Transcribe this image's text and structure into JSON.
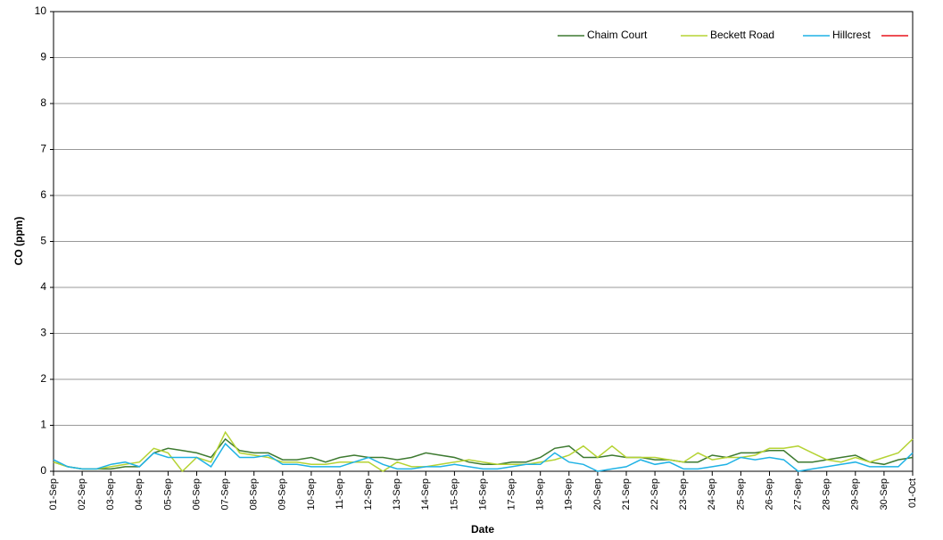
{
  "chart_data": {
    "type": "line",
    "y_label": "CO (ppm)",
    "x_label": "Date",
    "categories": [
      "01-Sep",
      null,
      "02-Sep",
      null,
      "03-Sep",
      null,
      "04-Sep",
      null,
      "05-Sep",
      null,
      "06-Sep",
      null,
      "07-Sep",
      null,
      "08-Sep",
      null,
      "09-Sep",
      null,
      "10-Sep",
      null,
      "11-Sep",
      null,
      "12-Sep",
      null,
      "13-Sep",
      null,
      "14-Sep",
      null,
      "15-Sep",
      null,
      "16-Sep",
      null,
      "17-Sep",
      null,
      "18-Sep",
      null,
      "19-Sep",
      null,
      "20-Sep",
      null,
      "21-Sep",
      null,
      "22-Sep",
      null,
      "23-Sep",
      null,
      "24-Sep",
      null,
      "25-Sep",
      null,
      "26-Sep",
      null,
      "27-Sep",
      null,
      "28-Sep",
      null,
      "29-Sep",
      null,
      "30-Sep",
      null,
      "01-Oct"
    ],
    "series": [
      {
        "name": "Chaim Court",
        "color": "#3d7a30",
        "values": [
          0.2,
          0.1,
          0.05,
          0.05,
          0.05,
          0.1,
          0.1,
          0.4,
          0.5,
          0.45,
          0.4,
          0.3,
          0.7,
          0.45,
          0.4,
          0.4,
          0.25,
          0.25,
          0.3,
          0.2,
          0.3,
          0.35,
          0.3,
          0.3,
          0.25,
          0.3,
          0.4,
          0.35,
          0.3,
          0.2,
          0.15,
          0.15,
          0.2,
          0.2,
          0.3,
          0.5,
          0.55,
          0.3,
          0.3,
          0.35,
          0.3,
          0.3,
          0.25,
          0.25,
          0.2,
          0.2,
          0.35,
          0.3,
          0.4,
          0.4,
          0.45,
          0.45,
          0.2,
          0.2,
          0.25,
          0.3,
          0.35,
          0.2,
          0.15,
          0.25,
          0.3
        ]
      },
      {
        "name": "Beckett Road",
        "color": "#b5d334",
        "values": [
          0.2,
          0.1,
          0.05,
          0.05,
          0.1,
          0.15,
          0.2,
          0.5,
          0.4,
          0.0,
          0.3,
          0.2,
          0.85,
          0.4,
          0.35,
          0.3,
          0.2,
          0.2,
          0.15,
          0.15,
          0.2,
          0.2,
          0.2,
          0.0,
          0.2,
          0.1,
          0.1,
          0.15,
          0.2,
          0.25,
          0.2,
          0.15,
          0.15,
          0.15,
          0.2,
          0.25,
          0.35,
          0.55,
          0.3,
          0.55,
          0.3,
          0.3,
          0.3,
          0.25,
          0.2,
          0.4,
          0.25,
          0.3,
          0.3,
          0.35,
          0.5,
          0.5,
          0.55,
          0.4,
          0.25,
          0.2,
          0.3,
          0.2,
          0.3,
          0.4,
          0.7
        ]
      },
      {
        "name": "Hillcrest",
        "color": "#1fb2e5",
        "values": [
          0.25,
          0.1,
          0.05,
          0.05,
          0.15,
          0.2,
          0.1,
          0.4,
          0.3,
          0.3,
          0.3,
          0.1,
          0.6,
          0.3,
          0.3,
          0.35,
          0.15,
          0.15,
          0.1,
          0.1,
          0.1,
          0.2,
          0.3,
          0.15,
          0.05,
          0.05,
          0.1,
          0.1,
          0.15,
          0.1,
          0.05,
          0.05,
          0.1,
          0.15,
          0.15,
          0.4,
          0.2,
          0.15,
          0.0,
          0.05,
          0.1,
          0.25,
          0.15,
          0.2,
          0.05,
          0.05,
          0.1,
          0.15,
          0.3,
          0.25,
          0.3,
          0.25,
          0.0,
          0.05,
          0.1,
          0.15,
          0.2,
          0.1,
          0.1,
          0.1,
          0.4
        ]
      },
      {
        "color": "#e8141c",
        "values": [
          null,
          null,
          null,
          null,
          null,
          null,
          null,
          null,
          null,
          null,
          null,
          null,
          null,
          null,
          null,
          null,
          null,
          null,
          null,
          null,
          null,
          null,
          null,
          null,
          null,
          null,
          null,
          null,
          null,
          null,
          null,
          null,
          null,
          null,
          null,
          null,
          null,
          null,
          null,
          null,
          null,
          null,
          null,
          null,
          null,
          null,
          null,
          null,
          null,
          null,
          null,
          null,
          null,
          null,
          null,
          null,
          null,
          null,
          null,
          null,
          null
        ]
      }
    ],
    "ylim": [
      0,
      10
    ],
    "yticks": [
      0,
      1,
      2,
      3,
      4,
      5,
      6,
      7,
      8,
      9,
      10
    ],
    "grid": true,
    "legend": "top-right"
  }
}
